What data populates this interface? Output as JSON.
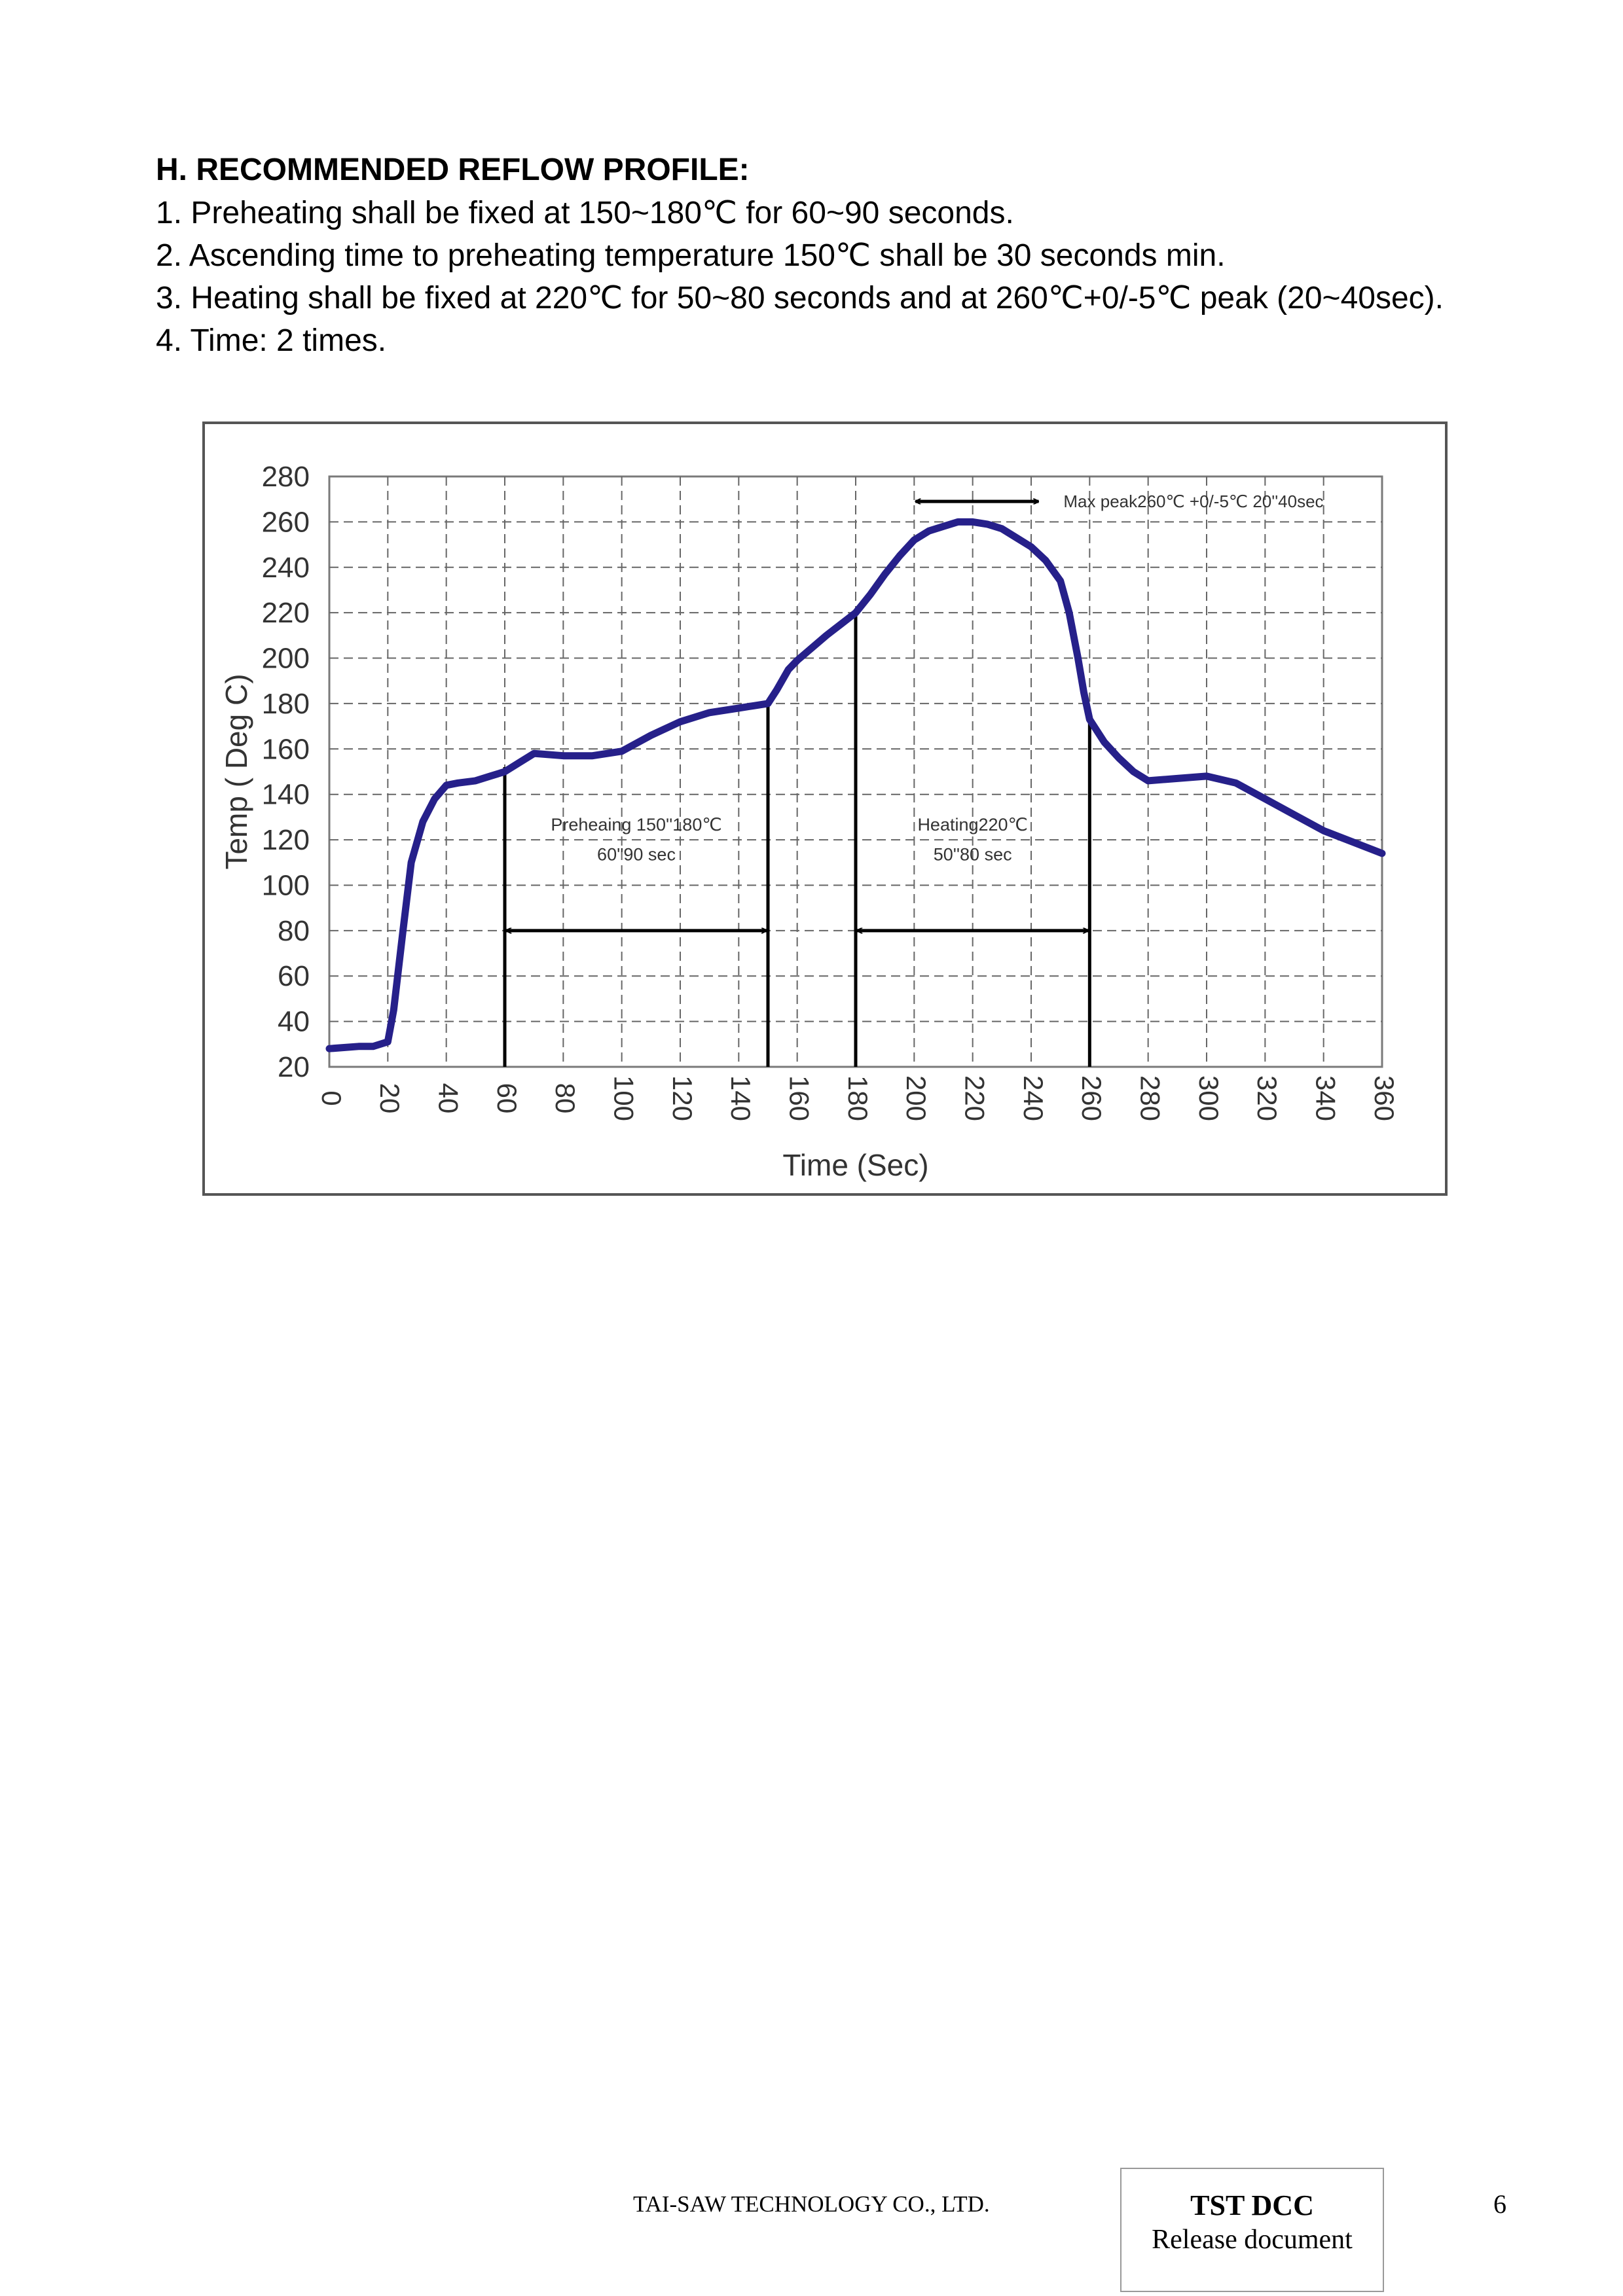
{
  "section": {
    "heading": "H. RECOMMENDED REFLOW PROFILE:",
    "items": [
      "1. Preheating shall be fixed at 150~180℃  for 60~90 seconds.",
      "2. Ascending time to preheating temperature 150℃  shall be 30 seconds min.",
      "3. Heating shall be fixed at 220℃  for 50~80 seconds and at 260℃+0/-5℃  peak (20~40sec).",
      "4. Time: 2 times."
    ]
  },
  "chart_data": {
    "type": "line",
    "title": "",
    "xlabel": "Time (Sec)",
    "ylabel": "Temp ( Deg C)",
    "xlim": [
      0,
      360
    ],
    "ylim": [
      20,
      280
    ],
    "xticks": [
      "0",
      "20",
      "40",
      "60",
      "80",
      "100",
      "120",
      "140",
      "160",
      "180",
      "200",
      "220",
      "240",
      "260",
      "280",
      "300",
      "320",
      "340",
      "360"
    ],
    "yticks": [
      "20",
      "40",
      "60",
      "80",
      "100",
      "120",
      "140",
      "160",
      "180",
      "200",
      "220",
      "240",
      "260",
      "280"
    ],
    "grid": true,
    "line_color": "#26208a",
    "series": [
      {
        "x": [
          0,
          10,
          15,
          20,
          22,
          25,
          28,
          32,
          36,
          40,
          44,
          50,
          55,
          60,
          65,
          70,
          80,
          90,
          100,
          110,
          120,
          130,
          140,
          145,
          150,
          153,
          157,
          160,
          170,
          175,
          180,
          185,
          190,
          195,
          200,
          205,
          210,
          215,
          220,
          225,
          230,
          235,
          240,
          245,
          250,
          253,
          256,
          258,
          260,
          265,
          270,
          275,
          280,
          290,
          300,
          310,
          320,
          330,
          340,
          350,
          360
        ],
        "y": [
          28,
          29,
          29,
          31,
          45,
          78,
          110,
          128,
          138,
          144,
          145,
          146,
          148,
          150,
          154,
          158,
          157,
          157,
          159,
          166,
          172,
          176,
          178,
          179,
          180,
          186,
          195,
          199,
          210,
          215,
          220,
          228,
          237,
          245,
          252,
          256,
          258,
          260,
          260,
          259,
          257,
          253,
          249,
          243,
          234,
          220,
          200,
          185,
          173,
          163,
          156,
          150,
          146,
          147,
          148,
          145,
          138,
          131,
          124,
          119,
          114
        ]
      }
    ],
    "annotations": {
      "preheating": {
        "line1": "Preheaing 150''180℃",
        "line2": "60''90 sec",
        "x_start": 60,
        "x_end": 150,
        "arrow_y": 80
      },
      "heating": {
        "line1": "Heating220℃",
        "line2": "50''80 sec",
        "x_start": 180,
        "x_end": 260,
        "arrow_y": 80
      },
      "peak": {
        "text": "Max peak260℃ +0/-5℃ 20''40sec",
        "x_start": 200,
        "x_end": 243,
        "arrow_y": 269
      }
    }
  },
  "footer": {
    "company": "TAI-SAW TECHNOLOGY CO., LTD.",
    "box_title": "TST DCC",
    "box_subtitle": "Release document",
    "page_number": "6"
  }
}
